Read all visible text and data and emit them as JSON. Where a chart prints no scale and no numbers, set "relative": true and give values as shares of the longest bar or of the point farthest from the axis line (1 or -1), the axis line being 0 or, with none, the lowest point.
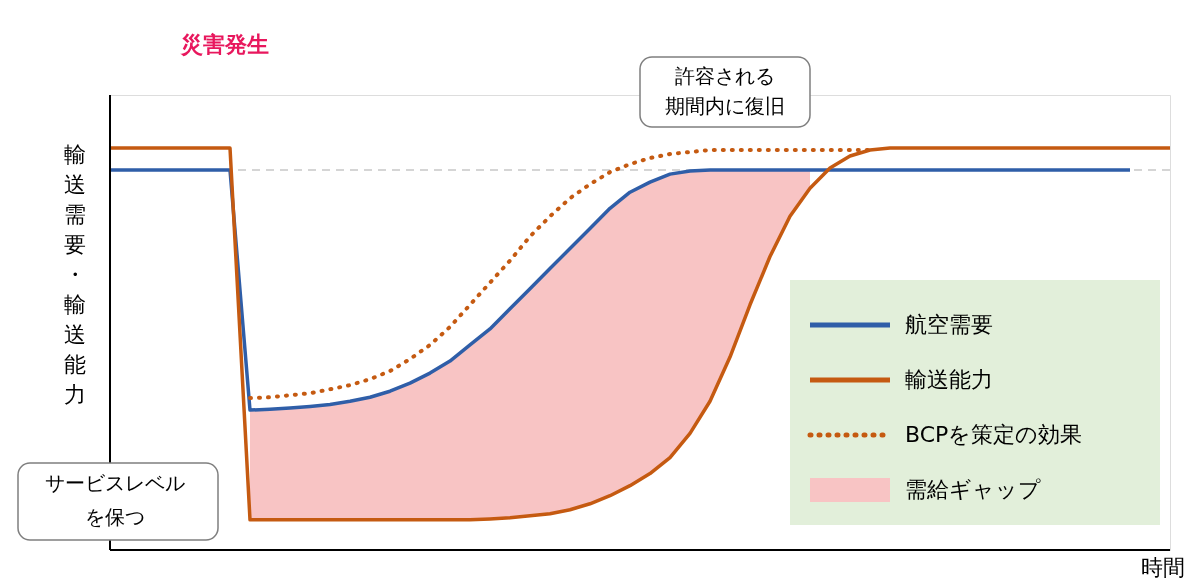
{
  "chart_data": {
    "type": "line",
    "relative": true,
    "xlabel": "時間",
    "ylabel": "輸送需要・輸送能力",
    "legend": "bottom right",
    "categories": [
      null,
      null,
      null,
      null,
      null,
      null,
      null,
      null,
      null,
      null,
      null,
      null,
      null,
      null,
      null,
      null,
      null,
      null,
      null,
      null,
      null,
      null,
      null,
      null,
      null,
      null,
      null,
      null,
      null,
      null,
      null,
      null,
      null,
      null,
      null,
      null,
      null,
      null,
      null,
      null,
      null,
      null,
      null,
      null,
      null,
      null,
      null,
      null,
      null,
      null,
      null,
      null,
      null,
      null
    ],
    "series": [
      {
        "name": "航空需要",
        "color": "#2f5ea8",
        "line_style": "solid",
        "values": [
          0.945,
          0.945,
          0.945,
          0.945,
          0.945,
          0.945,
          0.945,
          0.348,
          0.35,
          0.353,
          0.357,
          0.362,
          0.37,
          0.38,
          0.395,
          0.415,
          0.44,
          0.47,
          0.51,
          0.55,
          0.6,
          0.65,
          0.7,
          0.75,
          0.8,
          0.85,
          0.89,
          0.915,
          0.935,
          0.943,
          0.945,
          0.945,
          0.945,
          0.945,
          0.945,
          0.945,
          0.945,
          0.945,
          0.945,
          0.945,
          0.945,
          0.945,
          0.945,
          0.945,
          0.945,
          0.945,
          0.945,
          0.945,
          0.945,
          0.945,
          0.945,
          0.945,
          null,
          null
        ]
      },
      {
        "name": "輸送能力",
        "color": "#c55a11",
        "line_style": "solid",
        "values": [
          1,
          1,
          1,
          1,
          1,
          1,
          1,
          0.075,
          0.075,
          0.075,
          0.075,
          0.075,
          0.075,
          0.075,
          0.075,
          0.075,
          0.075,
          0.075,
          0.075,
          0.077,
          0.08,
          0.085,
          0.09,
          0.1,
          0.115,
          0.135,
          0.16,
          0.19,
          0.23,
          0.29,
          0.37,
          0.48,
          0.61,
          0.73,
          0.83,
          0.9,
          0.95,
          0.98,
          0.995,
          1,
          1,
          1,
          1,
          1,
          1,
          1,
          1,
          1,
          1,
          1,
          1,
          1,
          1,
          1
        ]
      },
      {
        "name": "BCPを策定の効果",
        "color": "#c55a11",
        "line_style": "dotted",
        "values": [
          null,
          null,
          null,
          null,
          null,
          null,
          null,
          0.378,
          0.38,
          0.385,
          0.39,
          0.4,
          0.41,
          0.425,
          0.445,
          0.475,
          0.51,
          0.555,
          0.61,
          0.665,
          0.72,
          0.78,
          0.83,
          0.875,
          0.91,
          0.94,
          0.96,
          0.975,
          0.985,
          0.99,
          0.995,
          0.995,
          0.995,
          0.995,
          0.995,
          0.995,
          0.995,
          0.995,
          0.995,
          null,
          null,
          null,
          null,
          null,
          null,
          null,
          null,
          null,
          null,
          null,
          null,
          null,
          null,
          null
        ]
      },
      {
        "name": "需給ギャップ",
        "type": "area",
        "color": "#f8c4c4",
        "values": [
          null,
          null,
          null,
          null,
          null,
          null,
          null,
          0.348,
          0.35,
          0.353,
          0.357,
          0.362,
          0.37,
          0.38,
          0.395,
          0.415,
          0.44,
          0.47,
          0.51,
          0.55,
          0.6,
          0.65,
          0.7,
          0.75,
          0.8,
          0.85,
          0.89,
          0.915,
          0.935,
          0.943,
          0.945,
          0.945,
          0.945,
          0.945,
          0.945,
          0.945,
          null,
          null,
          null,
          null,
          null,
          null,
          null,
          null,
          null,
          null,
          null,
          null,
          null,
          null,
          null,
          null,
          null,
          null
        ]
      }
    ],
    "ref_lines": [
      {
        "axis": "y",
        "value": 0.945,
        "color": "#c8c8c8",
        "line_style": "dashed"
      }
    ],
    "annotations": [
      "災害発生",
      "許容される",
      "期間内に復旧",
      "サービスレベル",
      "を保つ"
    ]
  }
}
